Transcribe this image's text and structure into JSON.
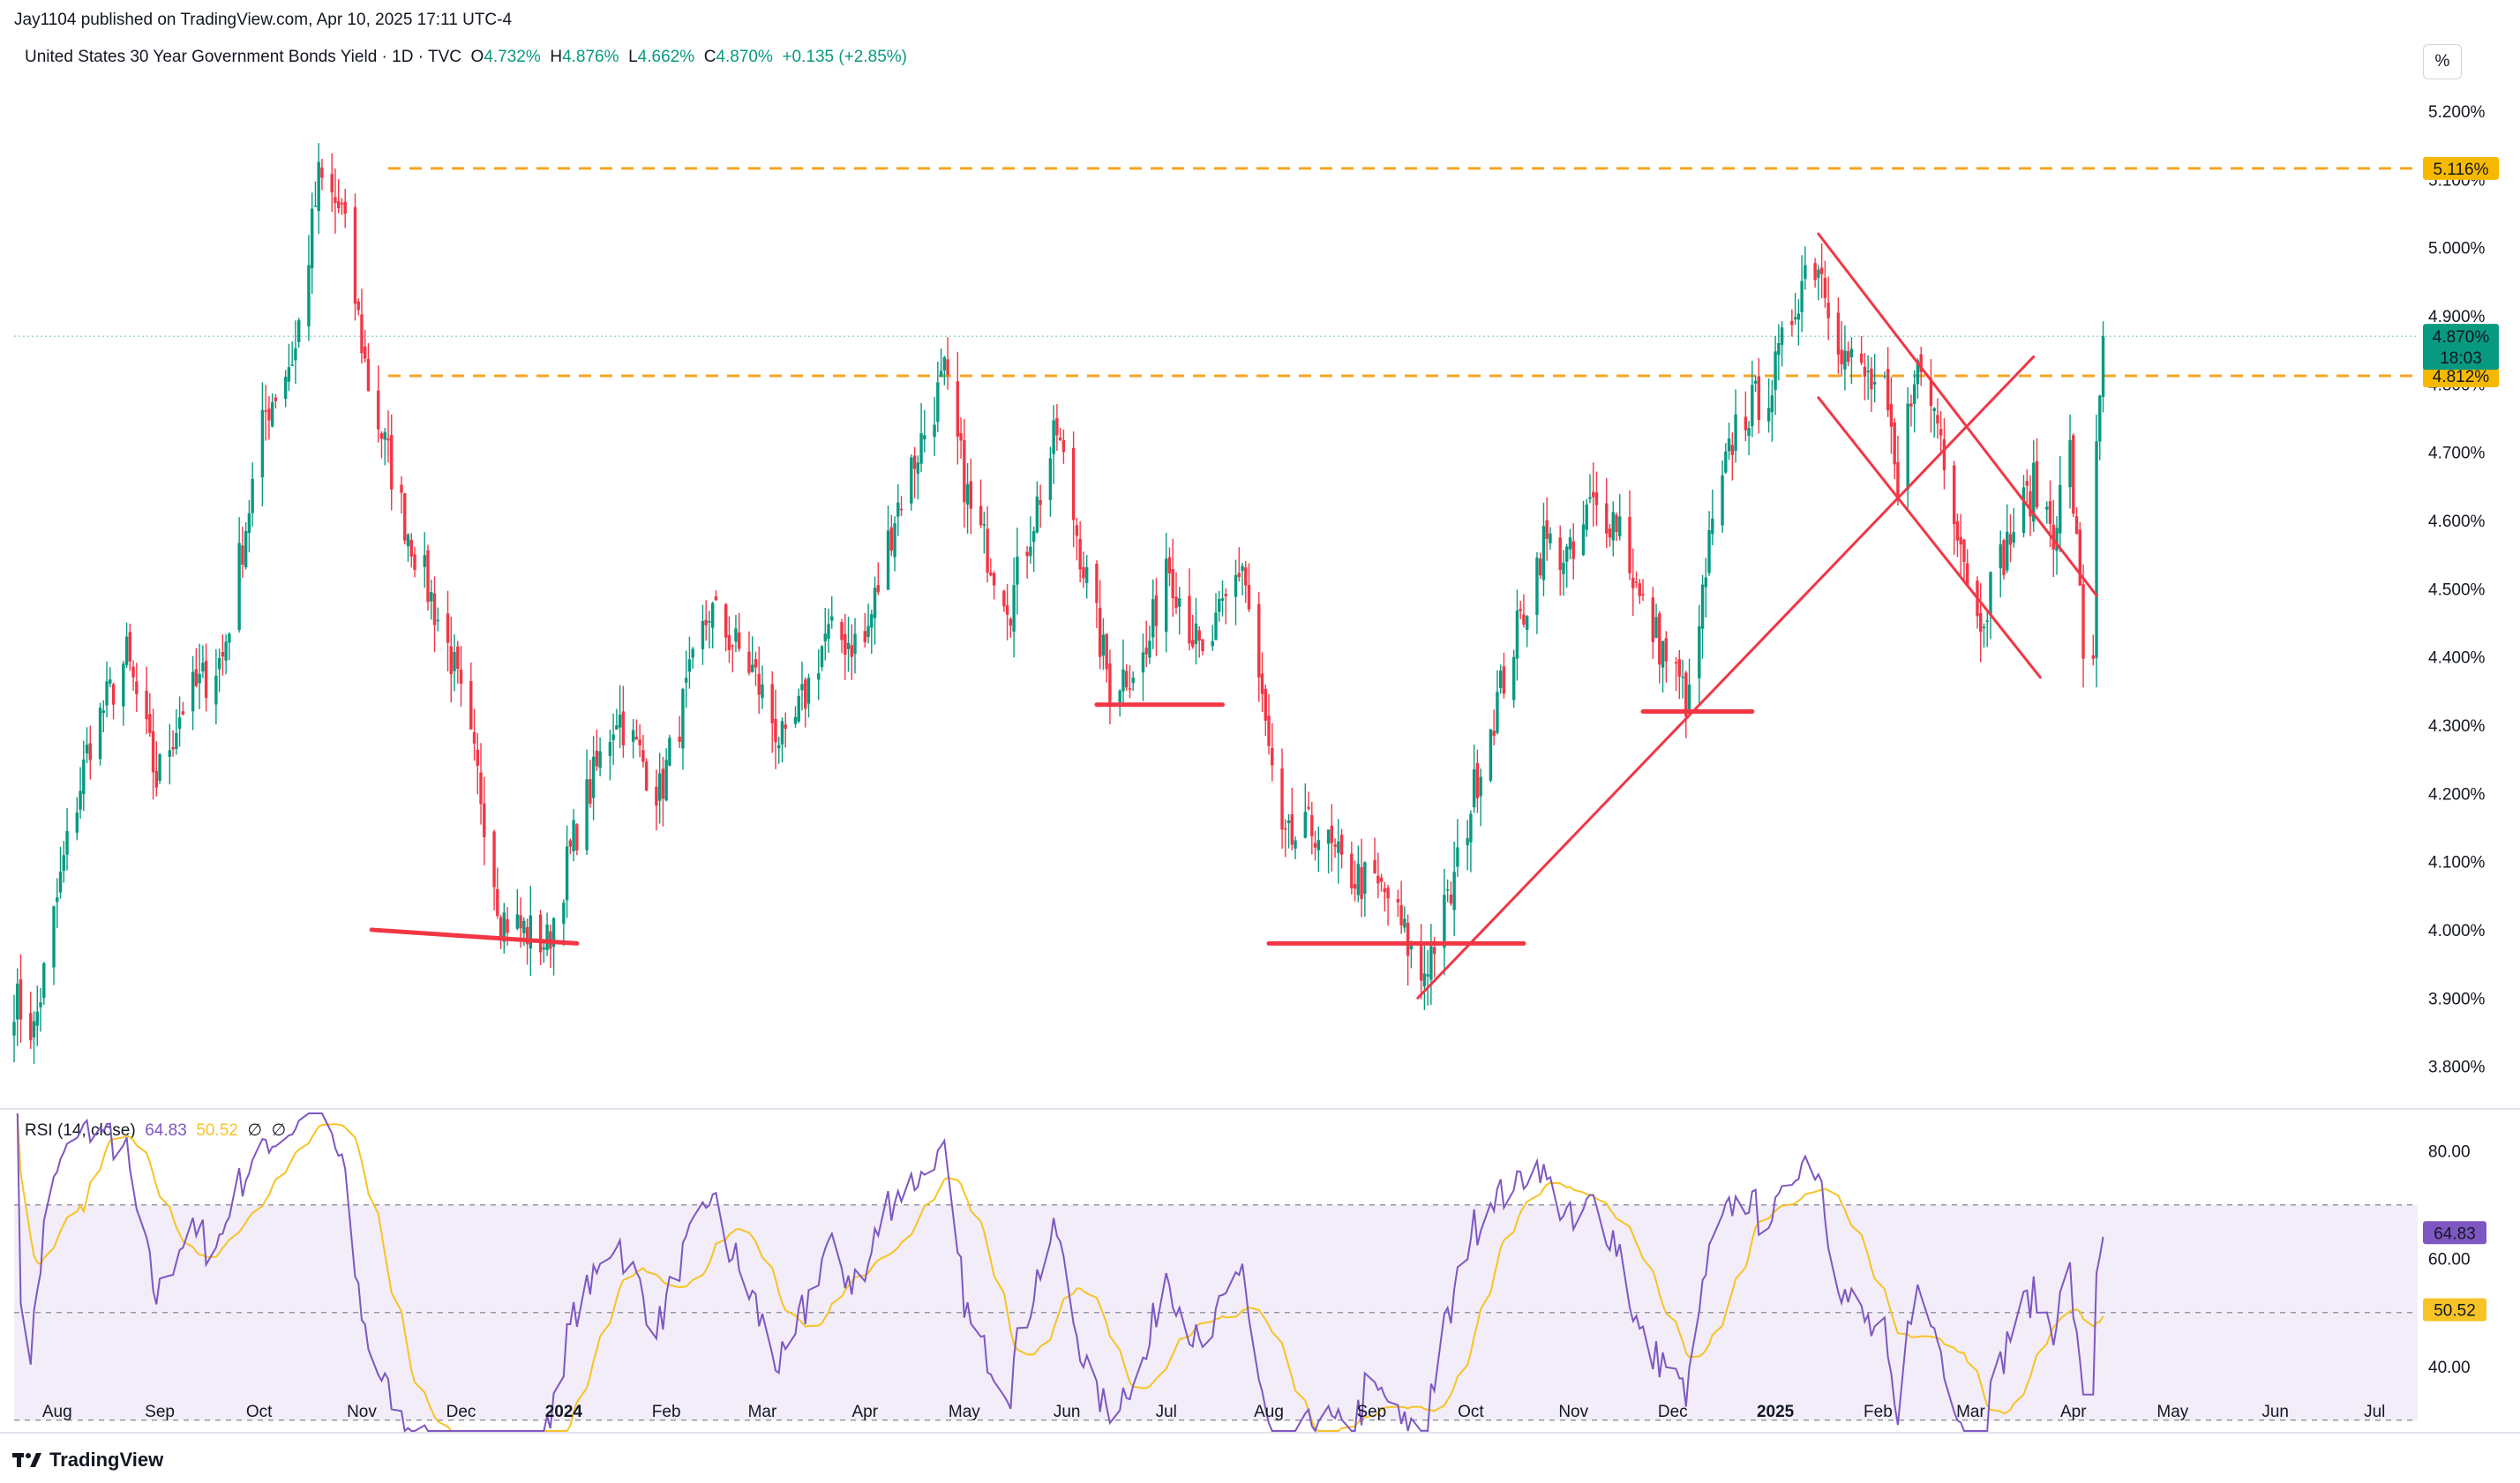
{
  "publish_line": "Jay1104 published on TradingView.com, Apr 10, 2025 17:11 UTC-4",
  "legend": {
    "title": "United States 30 Year Government Bonds Yield · 1D · TVC",
    "o_label": "O",
    "o_value": "4.732%",
    "h_label": "H",
    "h_value": "4.876%",
    "l_label": "L",
    "l_value": "4.662%",
    "c_label": "C",
    "c_value": "4.870%",
    "change": "+0.135 (+2.85%)"
  },
  "percent_button": "%",
  "rsi_legend": {
    "title": "RSI (14, close)",
    "rsi_value": "64.83",
    "ma_value": "50.52",
    "extra1": "∅",
    "extra2": "∅"
  },
  "brand": "TradingView",
  "colors": {
    "up": "#089981",
    "down": "#f23645",
    "drawing": "#f23645",
    "level": "#f5a623",
    "level_label_bg": "#f7b900",
    "rsi_line": "#7e57c2",
    "rsi_ma": "#f7c325",
    "rsi_band": "#ede7f6"
  },
  "chart_data": [
    {
      "type": "candlestick",
      "title": "United States 30 Year Government Bonds Yield",
      "interval": "1D",
      "ylim": [
        3.74,
        5.24
      ],
      "y_ticks": [
        "5.200%",
        "5.100%",
        "5.000%",
        "4.900%",
        "4.800%",
        "4.700%",
        "4.600%",
        "4.500%",
        "4.400%",
        "4.300%",
        "4.200%",
        "4.100%",
        "4.000%",
        "3.900%",
        "3.800%"
      ],
      "x_ticks": [
        "Aug",
        "Sep",
        "Oct",
        "Nov",
        "Dec",
        "2024",
        "Feb",
        "Mar",
        "Apr",
        "May",
        "Jun",
        "Jul",
        "Aug",
        "Sep",
        "Oct",
        "Nov",
        "Dec",
        "2025",
        "Feb",
        "Mar",
        "Apr",
        "May",
        "Jun",
        "Jul"
      ],
      "x_range": [
        "2023-07-19",
        "2025-07-14"
      ],
      "path_points": [
        [
          "2023-07-19",
          3.9
        ],
        [
          "2023-07-25",
          3.85
        ],
        [
          "2023-08-03",
          4.1
        ],
        [
          "2023-08-11",
          4.28
        ],
        [
          "2023-08-22",
          4.4
        ],
        [
          "2023-08-31",
          4.22
        ],
        [
          "2023-09-08",
          4.33
        ],
        [
          "2023-09-20",
          4.4
        ],
        [
          "2023-10-03",
          4.76
        ],
        [
          "2023-10-12",
          4.85
        ],
        [
          "2023-10-19",
          5.1
        ],
        [
          "2023-10-26",
          5.05
        ],
        [
          "2023-11-03",
          4.8
        ],
        [
          "2023-11-14",
          4.6
        ],
        [
          "2023-11-28",
          4.4
        ],
        [
          "2023-12-07",
          4.2
        ],
        [
          "2023-12-13",
          4.02
        ],
        [
          "2023-12-27",
          3.98
        ],
        [
          "2024-01-05",
          4.15
        ],
        [
          "2024-01-17",
          4.32
        ],
        [
          "2024-01-30",
          4.2
        ],
        [
          "2024-02-14",
          4.47
        ],
        [
          "2024-02-27",
          4.38
        ],
        [
          "2024-03-08",
          4.26
        ],
        [
          "2024-03-20",
          4.43
        ],
        [
          "2024-04-01",
          4.42
        ],
        [
          "2024-04-10",
          4.61
        ],
        [
          "2024-04-25",
          4.81
        ],
        [
          "2024-05-03",
          4.61
        ],
        [
          "2024-05-15",
          4.48
        ],
        [
          "2024-05-29",
          4.73
        ],
        [
          "2024-06-07",
          4.51
        ],
        [
          "2024-06-14",
          4.36
        ],
        [
          "2024-06-25",
          4.4
        ],
        [
          "2024-07-01",
          4.55
        ],
        [
          "2024-07-12",
          4.39
        ],
        [
          "2024-07-24",
          4.54
        ],
        [
          "2024-08-05",
          4.12
        ],
        [
          "2024-08-15",
          4.15
        ],
        [
          "2024-08-23",
          4.09
        ],
        [
          "2024-09-06",
          4.05
        ],
        [
          "2024-09-16",
          3.93
        ],
        [
          "2024-09-25",
          4.05
        ],
        [
          "2024-10-04",
          4.25
        ],
        [
          "2024-10-14",
          4.42
        ],
        [
          "2024-10-23",
          4.57
        ],
        [
          "2024-11-01",
          4.54
        ],
        [
          "2024-11-06",
          4.62
        ],
        [
          "2024-11-15",
          4.6
        ],
        [
          "2024-11-21",
          4.48
        ],
        [
          "2024-12-06",
          4.33
        ],
        [
          "2024-12-12",
          4.56
        ],
        [
          "2024-12-20",
          4.74
        ],
        [
          "2024-12-31",
          4.8
        ],
        [
          "2025-01-10",
          4.97
        ],
        [
          "2025-01-14",
          4.98
        ],
        [
          "2025-01-22",
          4.84
        ],
        [
          "2025-02-03",
          4.78
        ],
        [
          "2025-02-07",
          4.63
        ],
        [
          "2025-02-12",
          4.83
        ],
        [
          "2025-02-19",
          4.75
        ],
        [
          "2025-03-03",
          4.45
        ],
        [
          "2025-03-14",
          4.59
        ],
        [
          "2025-03-20",
          4.65
        ],
        [
          "2025-03-26",
          4.59
        ],
        [
          "2025-03-31",
          4.7
        ],
        [
          "2025-04-04",
          4.41
        ],
        [
          "2025-04-07",
          4.4
        ],
        [
          "2025-04-08",
          4.73
        ],
        [
          "2025-04-10",
          4.87
        ]
      ],
      "levels": [
        {
          "value": 5.116,
          "label": "5.116%"
        },
        {
          "value": 4.812,
          "label": "4.812%"
        }
      ],
      "last_price": {
        "value": 4.87,
        "label": "4.870%",
        "countdown": "18:03"
      },
      "drawings": [
        {
          "kind": "support",
          "from": [
            "2023-11-04",
            4.0
          ],
          "to": [
            "2024-01-05",
            3.98
          ]
        },
        {
          "kind": "support",
          "from": [
            "2024-06-10",
            4.33
          ],
          "to": [
            "2024-07-18",
            4.33
          ]
        },
        {
          "kind": "support",
          "from": [
            "2024-08-01",
            3.98
          ],
          "to": [
            "2024-10-17",
            3.98
          ]
        },
        {
          "kind": "support",
          "from": [
            "2024-11-22",
            4.32
          ],
          "to": [
            "2024-12-25",
            4.32
          ]
        },
        {
          "kind": "trendline",
          "from": [
            "2024-09-15",
            3.9
          ],
          "to": [
            "2025-03-20",
            4.84
          ]
        },
        {
          "kind": "channel-upper",
          "from": [
            "2025-01-14",
            5.02
          ],
          "to": [
            "2025-04-08",
            4.49
          ]
        },
        {
          "kind": "channel-lower",
          "from": [
            "2025-01-14",
            4.78
          ],
          "to": [
            "2025-03-22",
            4.37
          ]
        }
      ]
    },
    {
      "type": "line",
      "title": "RSI (14, close)",
      "ylim": [
        28,
        87
      ],
      "y_ticks": [
        "80.00",
        "60.00",
        "40.00"
      ],
      "band": [
        30,
        70
      ],
      "middle": 50,
      "series": [
        {
          "name": "RSI",
          "last": 64.83
        },
        {
          "name": "RSI-based MA",
          "last": 50.52
        }
      ]
    }
  ]
}
